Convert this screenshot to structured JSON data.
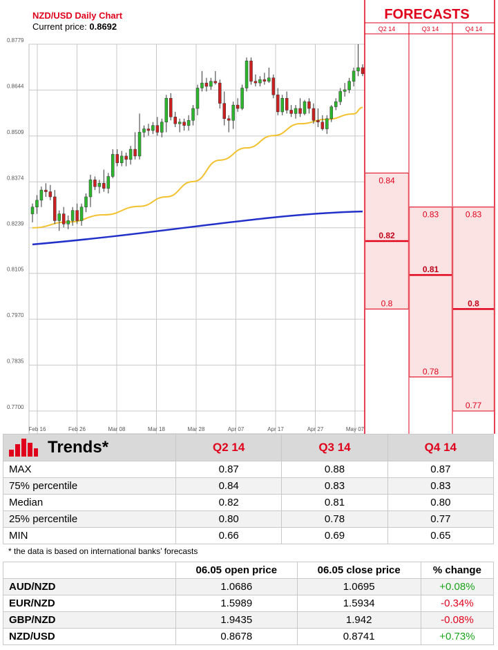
{
  "chart_header": {
    "title": "NZD/USD Daily Chart",
    "price_label": "Current price: ",
    "price_value": "0.8692"
  },
  "chart_data": {
    "type": "candlestick",
    "title": "NZD/USD Daily Chart",
    "y_ticks": [
      "0.8779",
      "0.8644",
      "0.8509",
      "0.8374",
      "0.8239",
      "0.8105",
      "0.7970",
      "0.7835",
      "0.7700"
    ],
    "ylim": [
      0.77,
      0.8779
    ],
    "x_ticks": [
      "Feb 16",
      "Feb 26",
      "Mar 08",
      "Mar 18",
      "Mar 28",
      "Apr 07",
      "Apr 17",
      "Apr 27",
      "May 07"
    ],
    "grid": true,
    "up_color": "#2db52d",
    "down_color": "#cc1f1f",
    "candles": [
      [
        0.828,
        0.831,
        0.8255,
        0.83
      ],
      [
        0.83,
        0.8335,
        0.828,
        0.832
      ],
      [
        0.832,
        0.836,
        0.83,
        0.835
      ],
      [
        0.835,
        0.837,
        0.833,
        0.8345
      ],
      [
        0.8345,
        0.8365,
        0.832,
        0.833
      ],
      [
        0.833,
        0.835,
        0.825,
        0.826
      ],
      [
        0.826,
        0.829,
        0.823,
        0.828
      ],
      [
        0.828,
        0.83,
        0.824,
        0.825
      ],
      [
        0.825,
        0.8275,
        0.8235,
        0.826
      ],
      [
        0.826,
        0.83,
        0.8245,
        0.829
      ],
      [
        0.829,
        0.831,
        0.825,
        0.826
      ],
      [
        0.826,
        0.831,
        0.8245,
        0.83
      ],
      [
        0.83,
        0.834,
        0.8285,
        0.833
      ],
      [
        0.833,
        0.8395,
        0.83,
        0.838
      ],
      [
        0.838,
        0.839,
        0.835,
        0.836
      ],
      [
        0.836,
        0.838,
        0.834,
        0.837
      ],
      [
        0.837,
        0.841,
        0.8345,
        0.8355
      ],
      [
        0.8355,
        0.84,
        0.834,
        0.839
      ],
      [
        0.839,
        0.847,
        0.8385,
        0.8455
      ],
      [
        0.8455,
        0.847,
        0.842,
        0.843
      ],
      [
        0.843,
        0.8465,
        0.842,
        0.845
      ],
      [
        0.845,
        0.846,
        0.842,
        0.844
      ],
      [
        0.844,
        0.848,
        0.8425,
        0.847
      ],
      [
        0.847,
        0.852,
        0.844,
        0.845
      ],
      [
        0.845,
        0.8575,
        0.844,
        0.852
      ],
      [
        0.852,
        0.854,
        0.8505,
        0.853
      ],
      [
        0.853,
        0.8545,
        0.851,
        0.8525
      ],
      [
        0.8525,
        0.855,
        0.8515,
        0.854
      ],
      [
        0.854,
        0.8565,
        0.851,
        0.852
      ],
      [
        0.852,
        0.856,
        0.8505,
        0.855
      ],
      [
        0.855,
        0.863,
        0.852,
        0.862
      ],
      [
        0.862,
        0.8635,
        0.8555,
        0.8565
      ],
      [
        0.8565,
        0.858,
        0.8535,
        0.8545
      ],
      [
        0.8545,
        0.856,
        0.852,
        0.855
      ],
      [
        0.855,
        0.856,
        0.8525,
        0.854
      ],
      [
        0.854,
        0.857,
        0.8525,
        0.8555
      ],
      [
        0.8555,
        0.86,
        0.854,
        0.859
      ],
      [
        0.859,
        0.866,
        0.857,
        0.865
      ],
      [
        0.865,
        0.87,
        0.864,
        0.8665
      ],
      [
        0.8665,
        0.868,
        0.864,
        0.8655
      ],
      [
        0.8655,
        0.868,
        0.8645,
        0.867
      ],
      [
        0.867,
        0.87,
        0.866,
        0.8665
      ],
      [
        0.8665,
        0.8675,
        0.859,
        0.8605
      ],
      [
        0.8605,
        0.864,
        0.854,
        0.856
      ],
      [
        0.856,
        0.857,
        0.852,
        0.8555
      ],
      [
        0.8555,
        0.861,
        0.853,
        0.86
      ],
      [
        0.86,
        0.862,
        0.858,
        0.859
      ],
      [
        0.859,
        0.866,
        0.8585,
        0.865
      ],
      [
        0.865,
        0.874,
        0.864,
        0.873
      ],
      [
        0.873,
        0.874,
        0.866,
        0.867
      ],
      [
        0.867,
        0.869,
        0.8655,
        0.8665
      ],
      [
        0.8665,
        0.8685,
        0.8655,
        0.8675
      ],
      [
        0.8675,
        0.8695,
        0.866,
        0.867
      ],
      [
        0.867,
        0.871,
        0.8665,
        0.868
      ],
      [
        0.868,
        0.869,
        0.862,
        0.863
      ],
      [
        0.863,
        0.865,
        0.857,
        0.858
      ],
      [
        0.858,
        0.863,
        0.857,
        0.862
      ],
      [
        0.862,
        0.864,
        0.8575,
        0.8585
      ],
      [
        0.8585,
        0.86,
        0.8565,
        0.8575
      ],
      [
        0.8575,
        0.86,
        0.856,
        0.859
      ],
      [
        0.859,
        0.862,
        0.8565,
        0.8575
      ],
      [
        0.8575,
        0.8615,
        0.857,
        0.861
      ],
      [
        0.861,
        0.862,
        0.8575,
        0.859
      ],
      [
        0.859,
        0.8605,
        0.8545,
        0.8555
      ],
      [
        0.8555,
        0.859,
        0.8535,
        0.855
      ],
      [
        0.855,
        0.857,
        0.8525,
        0.853
      ],
      [
        0.853,
        0.857,
        0.8515,
        0.856
      ],
      [
        0.856,
        0.86,
        0.855,
        0.8595
      ],
      [
        0.8595,
        0.862,
        0.8585,
        0.861
      ],
      [
        0.861,
        0.865,
        0.86,
        0.864
      ],
      [
        0.864,
        0.8665,
        0.8625,
        0.8645
      ],
      [
        0.8645,
        0.868,
        0.8635,
        0.867
      ],
      [
        0.867,
        0.871,
        0.8655,
        0.87
      ],
      [
        0.87,
        0.8779,
        0.8685,
        0.871
      ],
      [
        0.871,
        0.872,
        0.8685,
        0.8692
      ]
    ],
    "ma_long": [
      0.819,
      0.8287
    ],
    "ma_short_points": [
      [
        0,
        0.8239
      ],
      [
        8,
        0.8256
      ],
      [
        16,
        0.8277
      ],
      [
        24,
        0.8302
      ],
      [
        30,
        0.833
      ],
      [
        36,
        0.8375
      ],
      [
        42,
        0.8438
      ],
      [
        48,
        0.8474
      ],
      [
        54,
        0.851
      ],
      [
        60,
        0.8545
      ],
      [
        66,
        0.8558
      ],
      [
        72,
        0.8574
      ],
      [
        74,
        0.8593
      ]
    ]
  },
  "forecasts": {
    "title": "FORECASTS",
    "quarters": [
      {
        "label": "Q2 14",
        "high": "0.84",
        "median": "0.82",
        "low": "0.8",
        "high_v": 0.84,
        "median_v": 0.82,
        "low_v": 0.8
      },
      {
        "label": "Q3 14",
        "high": "0.83",
        "median": "0.81",
        "low": "0.78",
        "high_v": 0.83,
        "median_v": 0.81,
        "low_v": 0.78
      },
      {
        "label": "Q4 14",
        "high": "0.83",
        "median": "0.8",
        "low": "0.77",
        "high_v": 0.83,
        "median_v": 0.8,
        "low_v": 0.77
      }
    ]
  },
  "trends": {
    "title": "Trends",
    "asterisk": "*",
    "columns": [
      "Q2 14",
      "Q3 14",
      "Q4 14"
    ],
    "rows": [
      {
        "label": "MAX",
        "values": [
          "0.87",
          "0.88",
          "0.87"
        ]
      },
      {
        "label": "75% percentile",
        "values": [
          "0.84",
          "0.83",
          "0.83"
        ]
      },
      {
        "label": "Median",
        "values": [
          "0.82",
          "0.81",
          "0.80"
        ]
      },
      {
        "label": "25% percentile",
        "values": [
          "0.80",
          "0.78",
          "0.77"
        ]
      },
      {
        "label": "MIN",
        "values": [
          "0.66",
          "0.69",
          "0.65"
        ]
      }
    ],
    "footnote": "* the data is based on international banks’ forecasts"
  },
  "prices": {
    "headers": [
      "",
      "06.05 open price",
      "06.05 close price",
      "% change"
    ],
    "rows": [
      {
        "pair": "AUD/NZD",
        "open": "1.0686",
        "close": "1.0695",
        "change": "+0.08%",
        "dir": "pos"
      },
      {
        "pair": "EUR/NZD",
        "open": "1.5989",
        "close": "1.5934",
        "change": "-0.34%",
        "dir": "neg"
      },
      {
        "pair": "GBP/NZD",
        "open": "1.9435",
        "close": "1.942",
        "change": "-0.08%",
        "dir": "neg"
      },
      {
        "pair": "NZD/USD",
        "open": "0.8678",
        "close": "0.8741",
        "change": "+0.73%",
        "dir": "pos"
      }
    ]
  },
  "colors": {
    "accent_red": "#e0001b",
    "ma_short": "#f2c12e",
    "ma_long": "#2130c9",
    "forecast_fill": "#fbe3e3"
  }
}
